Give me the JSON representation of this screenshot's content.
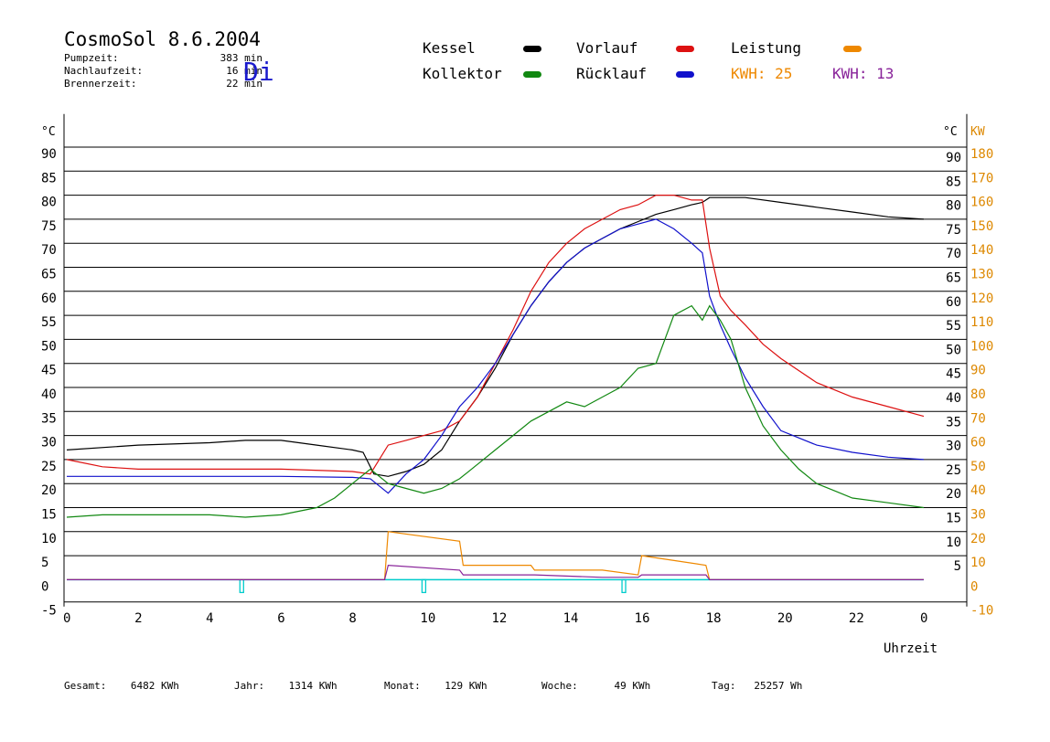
{
  "header": {
    "title": "CosmoSol 8.6.2004",
    "day": "Di",
    "info": [
      {
        "label": "Pumpzeit:",
        "value": "383 min"
      },
      {
        "label": "Nachlaufzeit:",
        "value": "16 min"
      },
      {
        "label": "Brennerzeit:",
        "value": "22 min"
      }
    ]
  },
  "legend": {
    "kessel": "Kessel",
    "vorlauf": "Vorlauf",
    "leistung": "Leistung",
    "kollektor": "Kollektor",
    "ruecklauf": "Rücklauf",
    "kwh1_label": "KWH:",
    "kwh1_value": "25",
    "kwh2_label": "KWH:",
    "kwh2_value": "13"
  },
  "footer": {
    "gesamt_label": "Gesamt:",
    "gesamt_value": "6482 KWh",
    "jahr_label": "Jahr:",
    "jahr_value": "1314 KWh",
    "monat_label": "Monat:",
    "monat_value": "129 KWh",
    "woche_label": "Woche:",
    "woche_value": "49 KWh",
    "tag_label": "Tag:",
    "tag_value": "25257 Wh"
  },
  "colors": {
    "kessel": "#000000",
    "vorlauf": "#dd1111",
    "ruecklauf": "#1111cc",
    "kollektor": "#118811",
    "leistung": "#ee8800",
    "kwh2": "#882299",
    "pump": "#00cccc",
    "axis_right": "#dd8800"
  },
  "chart_data": {
    "type": "line",
    "xlabel": "Uhrzeit",
    "ylabel_left": "°C",
    "ylabel_right": "KW",
    "xlim": [
      0,
      24
    ],
    "ylim": [
      -5,
      95
    ],
    "ylim_right": [
      -10,
      190
    ],
    "x_ticks": [
      "0",
      "2",
      "4",
      "6",
      "8",
      "10",
      "12",
      "14",
      "16",
      "18",
      "20",
      "22",
      "0"
    ],
    "y_ticks_left": [
      "90",
      "85",
      "80",
      "75",
      "70",
      "65",
      "60",
      "55",
      "50",
      "45",
      "40",
      "35",
      "30",
      "25",
      "20",
      "15",
      "10",
      "5",
      "0",
      "-5"
    ],
    "y_ticks_right_c": [
      "90",
      "85",
      "80",
      "75",
      "70",
      "65",
      "60",
      "55",
      "50",
      "45",
      "40",
      "35",
      "30",
      "25",
      "20",
      "15",
      "10",
      "5"
    ],
    "y_ticks_right_kw": [
      "180",
      "170",
      "160",
      "150",
      "140",
      "130",
      "120",
      "110",
      "100",
      "90",
      "80",
      "70",
      "60",
      "50",
      "40",
      "30",
      "20",
      "10",
      "0",
      "-10"
    ],
    "grid": true,
    "series": [
      {
        "name": "Kessel",
        "key": "kessel",
        "x": [
          0,
          2,
          4,
          5,
          6,
          7,
          8,
          8.3,
          8.6,
          9,
          9.5,
          10,
          10.5,
          11,
          11.5,
          12,
          12.5,
          13,
          13.5,
          14,
          14.5,
          15,
          15.5,
          16,
          16.5,
          17,
          17.5,
          17.8,
          18,
          19,
          20,
          21,
          22,
          23,
          24
        ],
        "y": [
          27,
          28,
          28.5,
          29,
          29,
          28,
          27,
          26.5,
          22,
          21.5,
          22.5,
          24,
          27,
          33,
          38,
          44,
          51,
          57,
          62,
          66,
          69,
          71,
          73,
          74.5,
          76,
          77,
          78,
          78.5,
          79.5,
          79.5,
          78.5,
          77.5,
          76.5,
          75.5,
          75
        ]
      },
      {
        "name": "Vorlauf",
        "key": "vorlauf",
        "x": [
          0,
          1,
          2,
          4,
          6,
          8,
          8.5,
          9,
          9.5,
          10,
          10.5,
          11,
          11.5,
          12,
          12.5,
          13,
          13.5,
          14,
          14.5,
          15,
          15.5,
          16,
          16.5,
          17,
          17.5,
          17.8,
          18,
          18.3,
          18.6,
          19,
          19.5,
          20,
          21,
          22,
          23,
          24
        ],
        "y": [
          25,
          23.5,
          23,
          23,
          23,
          22.5,
          22,
          28,
          29,
          30,
          31,
          33,
          38,
          45,
          52,
          60,
          66,
          70,
          73,
          75,
          77,
          78,
          80,
          80,
          79,
          79,
          69,
          59,
          56,
          53,
          49,
          46,
          41,
          38,
          36,
          34
        ]
      },
      {
        "name": "Rücklauf",
        "key": "ruecklauf",
        "x": [
          0,
          2,
          4,
          6,
          8,
          8.5,
          9,
          9.5,
          10,
          10.5,
          11,
          11.5,
          12,
          12.5,
          13,
          13.5,
          14,
          14.5,
          15,
          15.5,
          16,
          16.5,
          17,
          17.5,
          17.8,
          18,
          18.3,
          18.6,
          19,
          19.5,
          20,
          21,
          22,
          23,
          24
        ],
        "y": [
          21.5,
          21.5,
          21.5,
          21.5,
          21.3,
          21,
          18,
          22,
          25,
          30,
          36,
          40,
          45,
          51,
          57,
          62,
          66,
          69,
          71,
          73,
          74,
          75,
          73,
          70,
          68,
          59,
          53,
          48,
          42,
          36,
          31,
          28,
          26.5,
          25.5,
          25
        ]
      },
      {
        "name": "Kollektor",
        "key": "kollektor",
        "x": [
          0,
          1,
          2,
          3,
          4,
          5,
          6,
          7,
          7.5,
          8,
          8.5,
          9,
          9.5,
          10,
          10.5,
          11,
          11.5,
          12,
          12.5,
          13,
          13.5,
          14,
          14.5,
          15,
          15.5,
          16,
          16.5,
          17,
          17.5,
          17.8,
          18,
          18.3,
          18.6,
          19,
          19.5,
          20,
          20.5,
          21,
          21.5,
          22,
          23,
          24
        ],
        "y": [
          13,
          13.5,
          13.5,
          13.5,
          13.5,
          13,
          13.5,
          15,
          17,
          20,
          23,
          20,
          19,
          18,
          19,
          21,
          24,
          27,
          30,
          33,
          35,
          37,
          36,
          38,
          40,
          44,
          45,
          55,
          57,
          54,
          57,
          54,
          50,
          40,
          32,
          27,
          23,
          20,
          18.5,
          17,
          16,
          15
        ]
      },
      {
        "name": "Leistung",
        "key": "leistung",
        "x": [
          0,
          8.9,
          9,
          11,
          11.1,
          13,
          13.1,
          15,
          16,
          16.1,
          17.9,
          18,
          24
        ],
        "y": [
          0,
          0,
          10,
          8,
          3,
          3,
          2,
          2,
          1,
          5,
          3,
          0,
          0
        ]
      },
      {
        "name": "KWH",
        "key": "kwh2",
        "x": [
          0,
          8.9,
          9,
          11,
          11.1,
          13,
          13.1,
          15,
          16,
          16.1,
          17.9,
          18,
          24
        ],
        "y": [
          0,
          0,
          3,
          2,
          1,
          1,
          1,
          0.5,
          0.5,
          1,
          1,
          0,
          0
        ]
      }
    ]
  }
}
